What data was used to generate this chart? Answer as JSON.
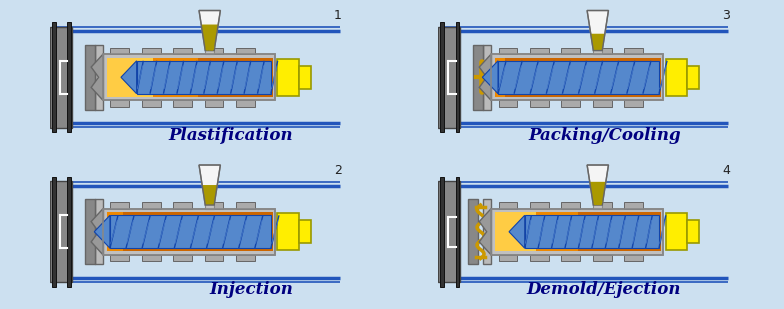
{
  "bg_color": "#cce0f0",
  "title_color": "#000080",
  "label_fontsize": 12,
  "num_fontsize": 9,
  "panel_stage_map": {
    "00": 0,
    "01": 2,
    "10": 1,
    "11": 3
  },
  "panel_label_map": {
    "00": "Plastification",
    "01": "Packing/Cooling",
    "10": "Injection",
    "11": "Demold/Ejection"
  },
  "panel_num_map": {
    "00": "1",
    "01": "3",
    "10": "2",
    "11": "4"
  },
  "colors": {
    "bg": "#cce0f0",
    "rail_blue": "#2255bb",
    "platen_dark": "#444444",
    "platen_mid": "#888888",
    "platen_light": "#bbbbbb",
    "barrel_gray": "#c0c0c0",
    "barrel_dark": "#888888",
    "band_gray": "#aaaaaa",
    "band_dark": "#666666",
    "melt_brown": "#cc6600",
    "melt_orange": "#ee8800",
    "melt_yellow": "#ffcc44",
    "screw_light": "#88bbee",
    "screw_mid": "#5588cc",
    "screw_dark": "#1144aa",
    "nozzle_gray": "#999999",
    "hyd_yellow": "#ffee00",
    "hyd_border": "#999900",
    "hopper_white": "#f5f5f5",
    "pellet_olive": "#aa9900",
    "part_gold": "#cc9900",
    "mold_gray": "#aaaaaa",
    "mold_dark": "#666666"
  }
}
